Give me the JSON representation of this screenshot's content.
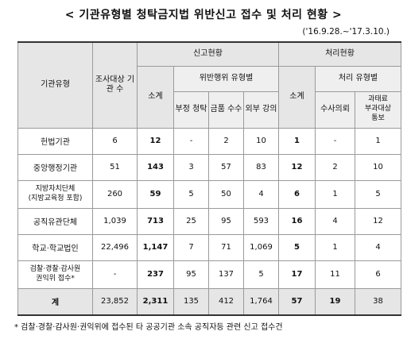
{
  "title": "< 기관유형별 청탁금지법 위반신고 접수 및 처리 현황 >",
  "period": "('16.9.28.~'17.3.10.)",
  "headers": {
    "org_type": "기관유형",
    "org_count": "조사대상 기관 수",
    "report_status": "신고현황",
    "subtotal": "소계",
    "violation_types": "위반행위 유형별",
    "improper_solicitation": "부정 청탁",
    "money_gifts": "금품 수수",
    "outside_lecture": "외부 강의",
    "processing_status": "처리현황",
    "processing_subtotal": "소계",
    "processing_types": "처리 유형별",
    "investigation_agency": "수사의뢰",
    "transfer_line1": "과태료",
    "transfer_line2": "부과대상",
    "transfer_line3": "통보"
  },
  "rows": [
    {
      "name": "헌법기관",
      "orgs": "6",
      "subtotal": "12",
      "solicit": "-",
      "money": "2",
      "lecture": "10",
      "proc": "1",
      "invest": "-",
      "transfer": "1"
    },
    {
      "name": "중앙행정기관",
      "orgs": "51",
      "subtotal": "143",
      "solicit": "3",
      "money": "57",
      "lecture": "83",
      "proc": "12",
      "invest": "2",
      "transfer": "10"
    },
    {
      "name": "지방자치단체",
      "name2": "(지방교육청 포함)",
      "orgs": "260",
      "subtotal": "59",
      "solicit": "5",
      "money": "50",
      "lecture": "4",
      "proc": "6",
      "invest": "1",
      "transfer": "5"
    },
    {
      "name": "공직유관단체",
      "orgs": "1,039",
      "subtotal": "713",
      "solicit": "25",
      "money": "95",
      "lecture": "593",
      "proc": "16",
      "invest": "4",
      "transfer": "12"
    },
    {
      "name": "학교·학교법인",
      "orgs": "22,496",
      "subtotal": "1,147",
      "solicit": "7",
      "money": "71",
      "lecture": "1,069",
      "proc": "5",
      "invest": "1",
      "transfer": "4"
    },
    {
      "name": "검찰·경찰·감사원",
      "name2": "권익위 접수*",
      "orgs": "-",
      "subtotal": "237",
      "solicit": "95",
      "money": "137",
      "lecture": "5",
      "proc": "17",
      "invest": "11",
      "transfer": "6"
    }
  ],
  "total": {
    "name": "계",
    "orgs": "23,852",
    "subtotal": "2,311",
    "solicit": "135",
    "money": "412",
    "lecture": "1,764",
    "proc": "57",
    "invest": "19",
    "transfer": "38"
  },
  "footnote": "* 검찰·경찰·감사원·권익위에 접수된 타 공공기관 소속 공직자등 관련 신고 접수건"
}
